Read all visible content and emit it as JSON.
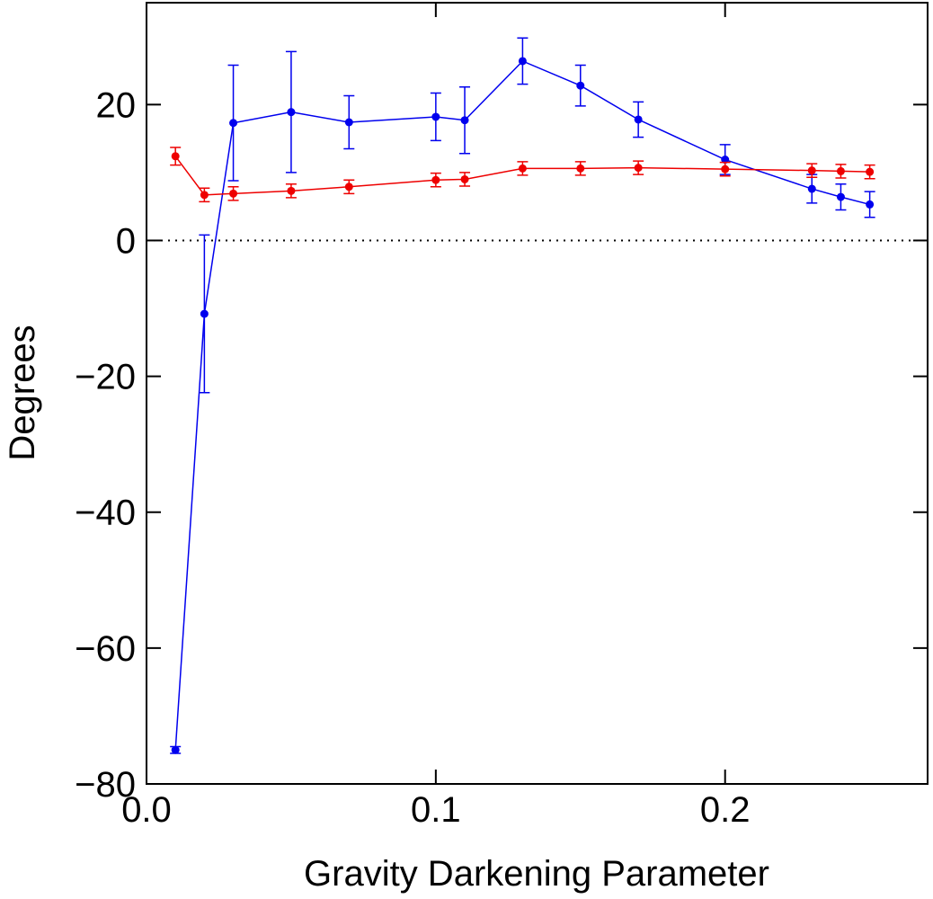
{
  "chart_data": {
    "type": "line",
    "x_label": "Gravity Darkening Parameter",
    "y_label": "Degrees",
    "x": [
      0.01,
      0.02,
      0.03,
      0.05,
      0.07,
      0.1,
      0.11,
      0.13,
      0.15,
      0.17,
      0.2,
      0.23,
      0.24,
      0.25
    ],
    "series": [
      {
        "color": "#0000ee",
        "values": [
          -75.0,
          -10.8,
          17.3,
          18.9,
          17.4,
          18.2,
          17.7,
          26.4,
          22.8,
          17.8,
          11.9,
          7.6,
          6.4,
          5.3
        ],
        "errors": [
          0.5,
          11.6,
          8.5,
          8.9,
          3.9,
          3.5,
          4.9,
          3.4,
          3.0,
          2.6,
          2.2,
          2.1,
          1.9,
          1.9
        ]
      },
      {
        "color": "#ee0000",
        "values": [
          12.4,
          6.7,
          6.9,
          7.3,
          7.9,
          8.9,
          9.0,
          10.6,
          10.6,
          10.7,
          10.5,
          10.3,
          10.2,
          10.1
        ],
        "errors": [
          1.3,
          1.0,
          1.0,
          1.0,
          1.0,
          1.0,
          1.0,
          1.0,
          1.0,
          1.0,
          1.0,
          1.0,
          1.0,
          1.0
        ]
      }
    ],
    "xlim": [
      0,
      0.27
    ],
    "ylim": [
      -80,
      35
    ],
    "xticks": [
      {
        "value": 0,
        "label": "0.0"
      },
      0.1,
      0.2
    ],
    "yticks": [
      {
        "value": -80,
        "label": "−80"
      },
      {
        "value": -60,
        "label": "−60"
      },
      {
        "value": -40,
        "label": "−40"
      },
      {
        "value": -20,
        "label": "−20"
      },
      0,
      20
    ],
    "hlines": [
      0
    ]
  }
}
